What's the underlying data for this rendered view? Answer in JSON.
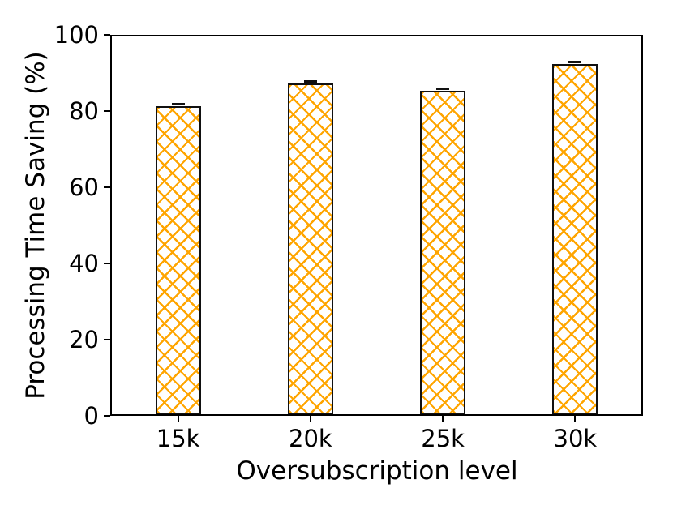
{
  "chart_data": {
    "type": "bar",
    "title": "",
    "xlabel": "Oversubscription level",
    "ylabel": "Processing Time Saving (%)",
    "categories": [
      "15k",
      "20k",
      "25k",
      "30k"
    ],
    "values": [
      81.5,
      87.5,
      85.7,
      92.8
    ],
    "error_bars": [
      0.5,
      0.5,
      0.5,
      0.5
    ],
    "ylim": [
      0,
      100
    ],
    "yticks": [
      0,
      20,
      40,
      60,
      80,
      100
    ],
    "grid": false,
    "legend_position": "none",
    "bar_hatch_pattern": "xx",
    "colors": {
      "bar_hatch": "#FFA500",
      "bar_face": "#ffffff",
      "bar_edge": "#111111",
      "axis": "#000000",
      "text": "#000000"
    }
  }
}
